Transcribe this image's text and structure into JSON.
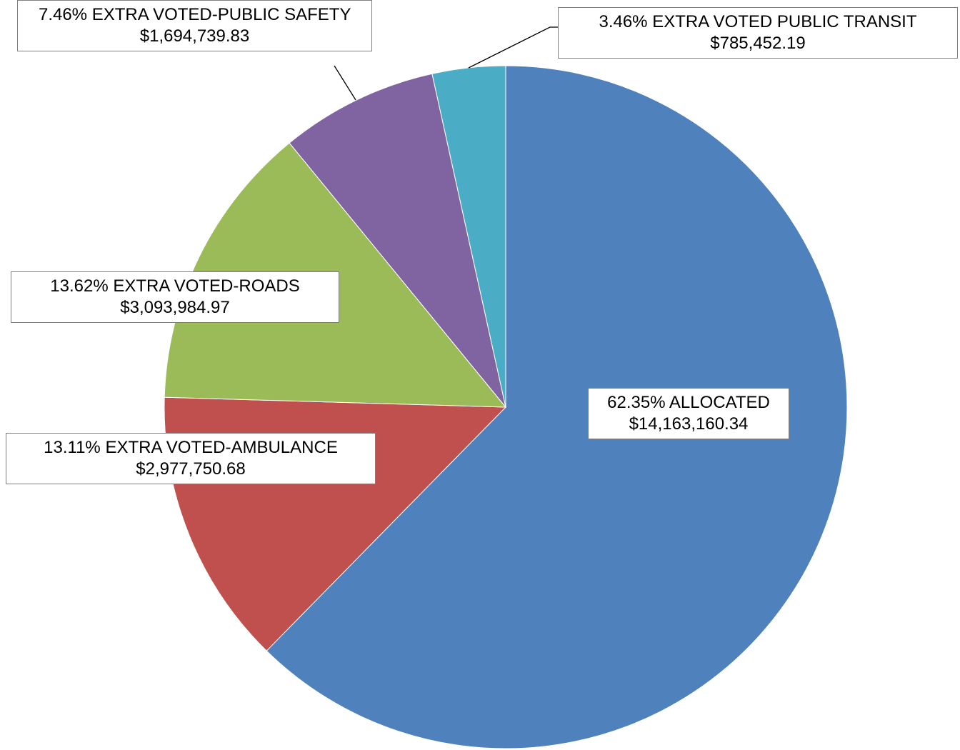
{
  "chart_data": {
    "type": "pie",
    "categories": [
      "ALLOCATED",
      "EXTRA VOTED-AMBULANCE",
      "EXTRA VOTED-ROADS",
      "EXTRA VOTED-PUBLIC SAFETY",
      "EXTRA VOTED PUBLIC TRANSIT"
    ],
    "values": [
      62.35,
      13.11,
      13.62,
      7.46,
      3.46
    ],
    "value_labels": [
      "62.35%",
      "13.11%",
      "13.62%",
      "7.46%",
      "3.46%"
    ],
    "amount_labels": [
      "$14,163,160.34",
      "$2,977,750.68",
      "$3,093,984.97",
      "$1,694,739.83",
      "$785,452.19"
    ],
    "colors": [
      "#4f81bd",
      "#c0504d",
      "#9bbb59",
      "#8064a2",
      "#4bacc6"
    ]
  }
}
